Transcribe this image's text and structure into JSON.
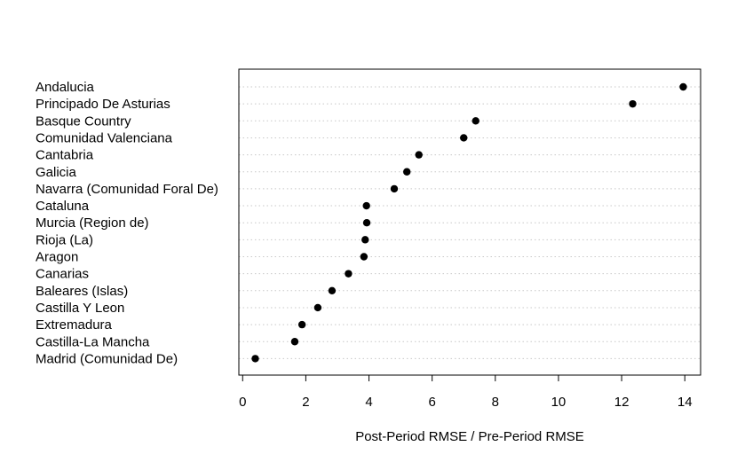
{
  "chart_data": {
    "type": "scatter",
    "title": "",
    "xlabel": "Post-Period RMSE / Pre-Period RMSE",
    "ylabel": "",
    "xlim": [
      -0.12,
      14.5
    ],
    "xticks": [
      0,
      2,
      4,
      6,
      8,
      10,
      12,
      14
    ],
    "grid": "dotted horizontal guide lines per category",
    "point_color": "#000000",
    "categories": [
      "Andalucia",
      "Principado De Asturias",
      "Basque Country",
      "Comunidad Valenciana",
      "Cantabria",
      "Galicia",
      "Navarra (Comunidad Foral De)",
      "Cataluna",
      "Murcia (Region de)",
      "Rioja (La)",
      "Aragon",
      "Canarias",
      "Baleares (Islas)",
      "Castilla Y Leon",
      "Extremadura",
      "Castilla-La Mancha",
      "Madrid (Comunidad De)"
    ],
    "values": [
      13.95,
      12.35,
      7.38,
      7.0,
      5.58,
      5.2,
      4.8,
      3.92,
      3.93,
      3.88,
      3.84,
      3.35,
      2.83,
      2.38,
      1.88,
      1.65,
      0.4
    ]
  }
}
